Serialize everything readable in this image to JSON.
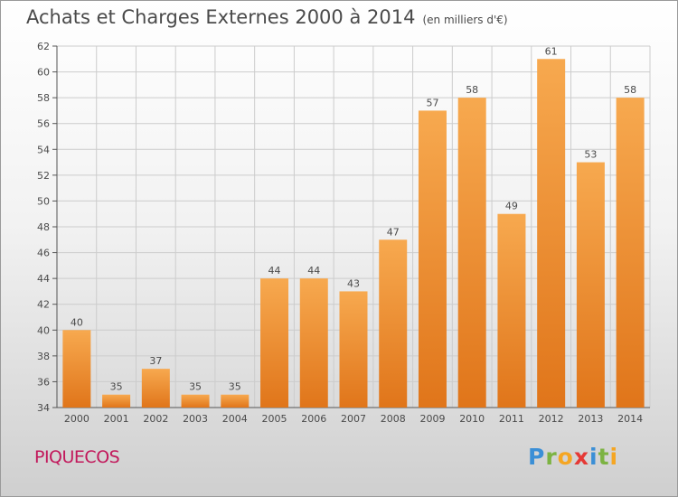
{
  "title": "Achats et Charges Externes 2000 à 2014",
  "unit": "(en milliers d'€)",
  "commune": "PIQUECOS",
  "brand": {
    "letters": [
      "P",
      "r",
      "o",
      "x",
      "i",
      "t",
      "i"
    ],
    "colors": [
      "#3b8fd6",
      "#7cb342",
      "#f5a623",
      "#e53935",
      "#3b8fd6",
      "#7cb342",
      "#f5a623"
    ]
  },
  "colors": {
    "bar_light": "#f7a94f",
    "bar_dark": "#e0751a",
    "grid": "#cccccc",
    "text": "#4a4a4a",
    "commune": "#c2185b"
  },
  "chart_data": {
    "type": "bar",
    "categories": [
      "2000",
      "2001",
      "2002",
      "2003",
      "2004",
      "2005",
      "2006",
      "2007",
      "2008",
      "2009",
      "2010",
      "2011",
      "2012",
      "2013",
      "2014"
    ],
    "values": [
      40,
      35,
      37,
      35,
      35,
      44,
      44,
      43,
      47,
      57,
      58,
      49,
      61,
      53,
      58
    ],
    "ylim": [
      34,
      62
    ],
    "yticks": [
      34,
      36,
      38,
      40,
      42,
      44,
      46,
      48,
      50,
      52,
      54,
      56,
      58,
      60,
      62
    ],
    "grid": true,
    "data_labels": true
  }
}
